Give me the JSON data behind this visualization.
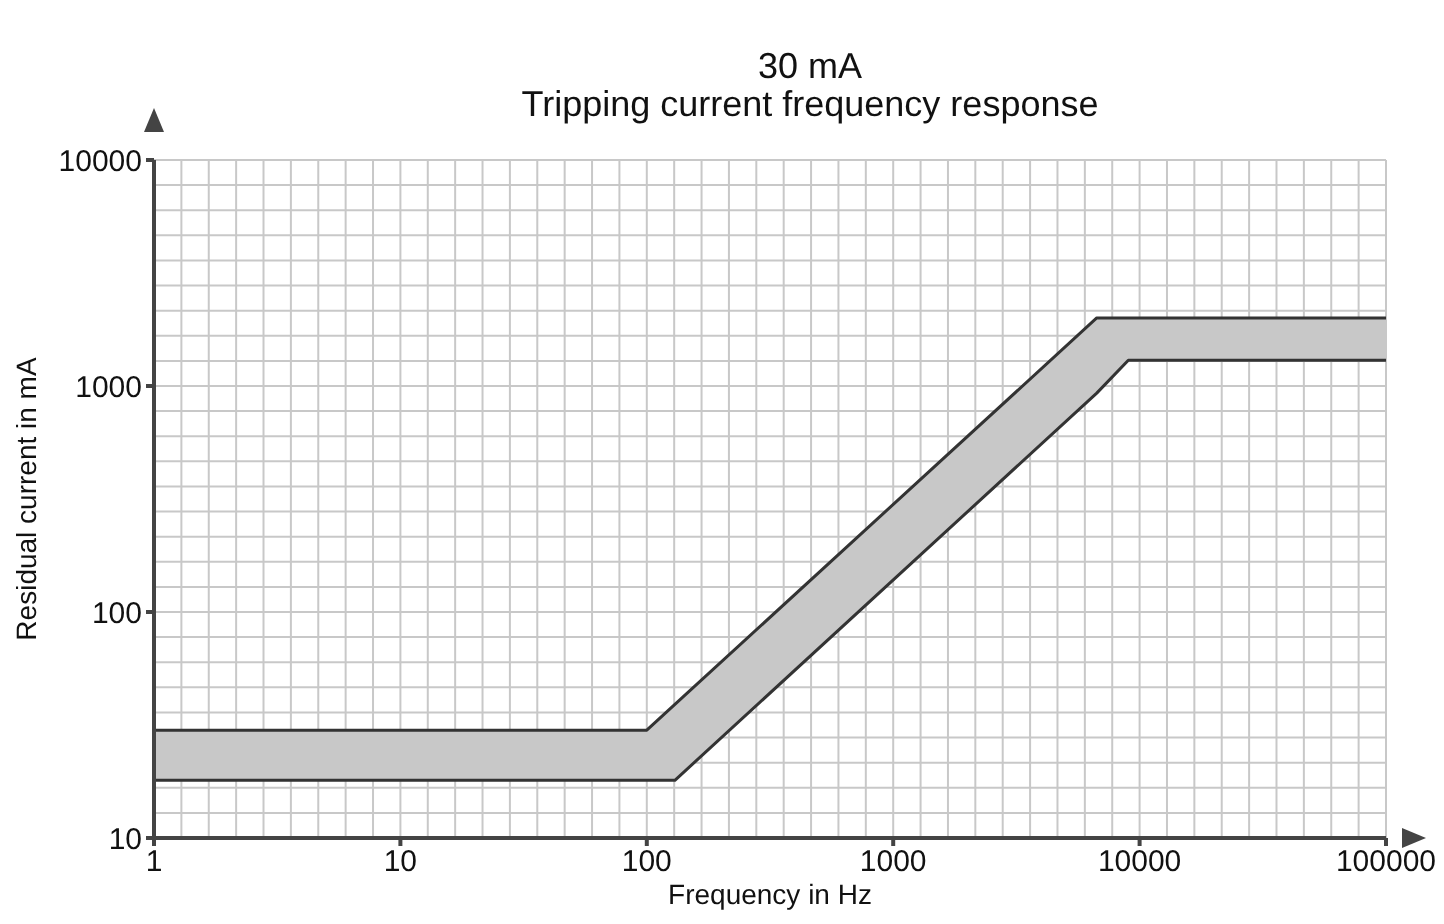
{
  "chart_data": {
    "type": "line",
    "title": "30 mA",
    "subtitle": "Tripping current frequency response",
    "xlabel": "Frequency in Hz",
    "ylabel": "Residual current in mA",
    "x": [
      1,
      100,
      130,
      6700,
      9000,
      100000
    ],
    "series": [
      {
        "color": "#333333",
        "values": [
          30,
          30,
          39,
          2000,
          2000,
          2000
        ],
        "lower": [
          18,
          18,
          18,
          930,
          1300,
          1300
        ],
        "upper": [
          30,
          30,
          39,
          2000,
          2000,
          2000
        ]
      },
      {
        "color": "#333333",
        "values": [
          18,
          18,
          18,
          930,
          1300,
          1300
        ]
      }
    ],
    "xlim": [
      1,
      100000
    ],
    "xticks": [
      1,
      10,
      100,
      1000,
      10000,
      100000
    ],
    "ylim": [
      10,
      10000
    ],
    "yticks": [
      10,
      100,
      1000,
      10000
    ],
    "log": "xy",
    "grid": true
  }
}
